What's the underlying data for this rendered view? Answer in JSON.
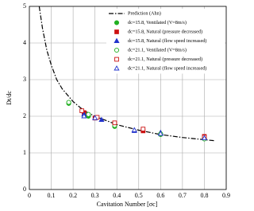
{
  "chart_data": {
    "type": "scatter",
    "xlabel": "Cavitation Number [σc]",
    "ylabel": "Dt/dc",
    "xlim": [
      0,
      0.9
    ],
    "ylim": [
      0,
      5
    ],
    "xticks": [
      0,
      0.1,
      0.2,
      0.3,
      0.4,
      0.5,
      0.6,
      0.7,
      0.8,
      0.9
    ],
    "yticks": [
      0,
      1,
      2,
      3,
      4,
      5
    ],
    "grid": true,
    "legend": "upper-right",
    "series": [
      {
        "name": "Prediction (Ahn)",
        "color": "#000000",
        "style": "dashdot",
        "x": [
          0.045,
          0.06,
          0.08,
          0.1,
          0.125,
          0.15,
          0.2,
          0.25,
          0.3,
          0.4,
          0.5,
          0.6,
          0.7,
          0.8,
          0.85
        ],
        "values": [
          5,
          4.4,
          3.8,
          3.4,
          3.0,
          2.75,
          2.4,
          2.15,
          2.0,
          1.77,
          1.62,
          1.5,
          1.42,
          1.36,
          1.33
        ]
      },
      {
        "name": "dc=15.8, Ventilated (V=8m/s)",
        "color": "#22b022",
        "marker": "circle",
        "filled": true,
        "x": [
          0.18,
          0.27,
          0.39,
          0.6,
          0.8
        ],
        "values": [
          2.35,
          2.0,
          1.72,
          1.5,
          1.4
        ]
      },
      {
        "name": "dc=15.8, Natural (pressure decreased)",
        "color": "#cc1111",
        "marker": "square",
        "filled": true,
        "x": [
          0.25,
          0.3,
          0.39,
          0.52,
          0.8
        ],
        "values": [
          2.1,
          1.95,
          1.8,
          1.6,
          1.45
        ]
      },
      {
        "name": "dc=15.8, Natural (flow speed increased)",
        "color": "#2233cc",
        "marker": "triangle",
        "filled": true,
        "x": [
          0.25,
          0.33,
          0.48,
          0.6,
          0.8
        ],
        "values": [
          2.05,
          1.9,
          1.6,
          1.55,
          1.42
        ]
      },
      {
        "name": "dc=21.1, Ventilated (V=8m/s)",
        "color": "#22b022",
        "marker": "circle",
        "filled": false,
        "x": [
          0.18,
          0.27,
          0.39,
          0.6,
          0.8
        ],
        "values": [
          2.38,
          2.05,
          1.75,
          1.52,
          1.38
        ]
      },
      {
        "name": "dc=21.1, Natural (pressure decreased)",
        "color": "#cc1111",
        "marker": "square",
        "filled": false,
        "x": [
          0.24,
          0.31,
          0.39,
          0.52,
          0.8
        ],
        "values": [
          2.15,
          1.97,
          1.82,
          1.65,
          1.43
        ]
      },
      {
        "name": "dc=21.1, Natural (flow speed increased)",
        "color": "#2233cc",
        "marker": "triangle",
        "filled": false,
        "x": [
          0.25,
          0.3,
          0.48,
          0.6,
          0.8
        ],
        "values": [
          2.0,
          1.95,
          1.62,
          1.52,
          1.4
        ]
      }
    ]
  }
}
